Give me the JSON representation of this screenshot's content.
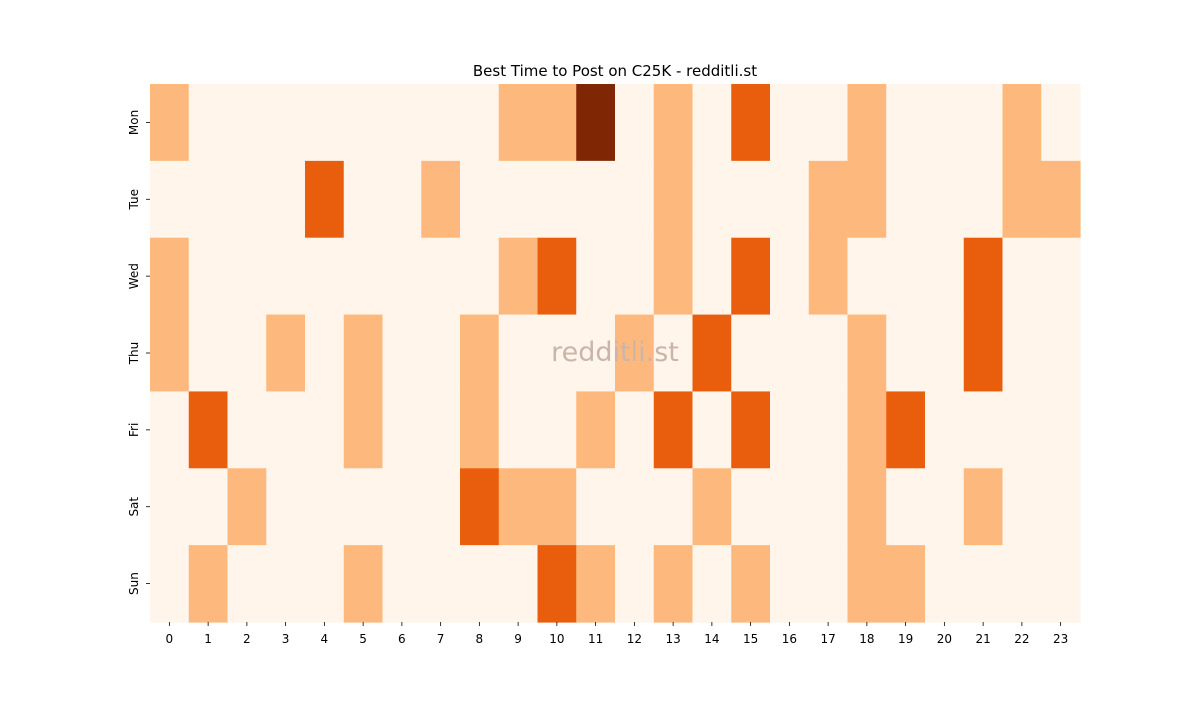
{
  "chart_data": {
    "type": "heatmap",
    "title": "Best Time to Post on C25K - redditli.st",
    "watermark": "redditli.st",
    "xlabel": "",
    "ylabel": "",
    "x_categories": [
      "0",
      "1",
      "2",
      "3",
      "4",
      "5",
      "6",
      "7",
      "8",
      "9",
      "10",
      "11",
      "12",
      "13",
      "14",
      "15",
      "16",
      "17",
      "18",
      "19",
      "20",
      "21",
      "22",
      "23"
    ],
    "y_categories": [
      "Mon",
      "Tue",
      "Wed",
      "Thu",
      "Fri",
      "Sat",
      "Sun"
    ],
    "values": [
      [
        1,
        0,
        0,
        0,
        0,
        0,
        0,
        0,
        0,
        1,
        1,
        3,
        0,
        1,
        0,
        2,
        0,
        0,
        1,
        0,
        0,
        0,
        1,
        0
      ],
      [
        0,
        0,
        0,
        0,
        2,
        0,
        0,
        1,
        0,
        0,
        0,
        0,
        0,
        1,
        0,
        0,
        0,
        1,
        1,
        0,
        0,
        0,
        1,
        1
      ],
      [
        1,
        0,
        0,
        0,
        0,
        0,
        0,
        0,
        0,
        1,
        2,
        0,
        0,
        1,
        0,
        2,
        0,
        1,
        0,
        0,
        0,
        2,
        0,
        0
      ],
      [
        1,
        0,
        0,
        1,
        0,
        1,
        0,
        0,
        1,
        0,
        0,
        0,
        1,
        0,
        2,
        0,
        0,
        0,
        1,
        0,
        0,
        2,
        0,
        0
      ],
      [
        0,
        2,
        0,
        0,
        0,
        1,
        0,
        0,
        1,
        0,
        0,
        1,
        0,
        2,
        0,
        2,
        0,
        0,
        1,
        2,
        0,
        0,
        0,
        0
      ],
      [
        0,
        0,
        1,
        0,
        0,
        0,
        0,
        0,
        2,
        1,
        1,
        0,
        0,
        0,
        1,
        0,
        0,
        0,
        1,
        0,
        0,
        1,
        0,
        0
      ],
      [
        0,
        1,
        0,
        0,
        0,
        1,
        0,
        0,
        0,
        0,
        2,
        1,
        0,
        1,
        0,
        1,
        0,
        0,
        1,
        1,
        0,
        0,
        0,
        0
      ]
    ],
    "colorscale": [
      "#fff5eb",
      "#fdb97d",
      "#e95e0d",
      "#7f2704"
    ],
    "colorbar": false,
    "grid": false
  }
}
